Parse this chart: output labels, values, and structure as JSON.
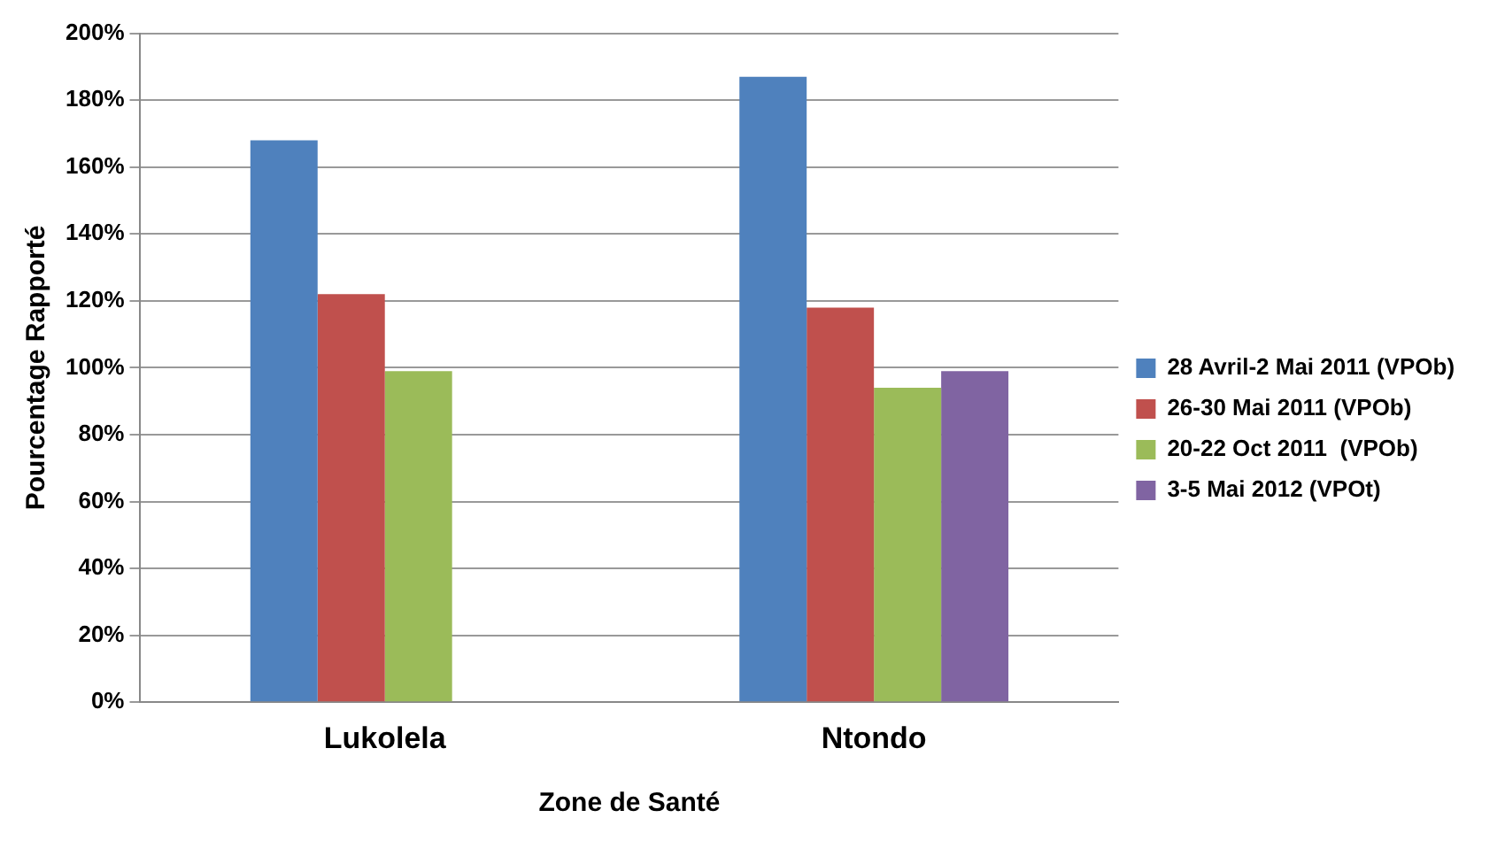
{
  "chart_data": {
    "type": "bar",
    "xlabel": "Zone de Santé",
    "ylabel": "Pourcentage Rapporté",
    "categories": [
      "Lukolela",
      "Ntondo"
    ],
    "series": [
      {
        "name": "28 Avril-2 Mai 2011 (VPOb)",
        "color": "#4f81bd",
        "values": [
          168,
          187
        ]
      },
      {
        "name": "26-30 Mai 2011 (VPOb)",
        "color": "#c0504d",
        "values": [
          122,
          118
        ]
      },
      {
        "name": "20-22 Oct 2011  (VPOb)",
        "color": "#9bbb59",
        "values": [
          99,
          94
        ]
      },
      {
        "name": "3-5 Mai 2012 (VPOt)",
        "color": "#8064a2",
        "values": [
          null,
          99
        ]
      }
    ],
    "ylim": [
      0,
      200
    ],
    "yticks": [
      {
        "value": 0,
        "label": "0%"
      },
      {
        "value": 20,
        "label": "20%"
      },
      {
        "value": 40,
        "label": "40%"
      },
      {
        "value": 60,
        "label": "60%"
      },
      {
        "value": 80,
        "label": "80%"
      },
      {
        "value": 100,
        "label": "100%"
      },
      {
        "value": 120,
        "label": "120%"
      },
      {
        "value": 140,
        "label": "140%"
      },
      {
        "value": 160,
        "label": "160%"
      },
      {
        "value": 180,
        "label": "180%"
      },
      {
        "value": 200,
        "label": "200%"
      }
    ],
    "grid": "y",
    "legend": "right"
  }
}
